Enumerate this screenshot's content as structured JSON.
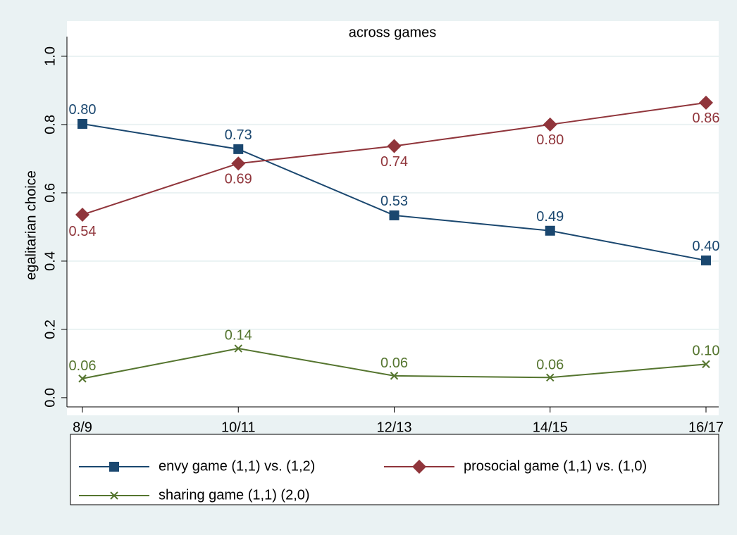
{
  "chart_data": {
    "type": "line",
    "title": "across games",
    "ylabel": "egalitarian choice",
    "categories": [
      "8/9",
      "10/11",
      "12/13",
      "14/15",
      "16/17"
    ],
    "series": [
      {
        "name": "envy game (1,1) vs. (1,2)",
        "color": "#1a476f",
        "marker": "square",
        "values": [
          0.802,
          0.728,
          0.534,
          0.489,
          0.402
        ],
        "value_labels": [
          "0.80",
          "0.73",
          "0.53",
          "0.49",
          "0.40"
        ]
      },
      {
        "name": "prosocial game (1,1) vs. (1,0)",
        "color": "#90353b",
        "marker": "diamond",
        "values": [
          0.536,
          0.686,
          0.737,
          0.8,
          0.864
        ],
        "value_labels": [
          "0.54",
          "0.69",
          "0.74",
          "0.80",
          "0.86"
        ]
      },
      {
        "name": "sharing game (1,1) (2,0)",
        "color": "#55752f",
        "marker": "x",
        "values": [
          0.056,
          0.144,
          0.064,
          0.059,
          0.098
        ],
        "value_labels": [
          "0.06",
          "0.14",
          "0.06",
          "0.06",
          "0.10"
        ]
      }
    ],
    "ylim": [
      -0.027,
      1.037
    ],
    "yticks": [
      {
        "value": 0,
        "label": "0.0"
      },
      {
        "value": 0.2,
        "label": "0.2"
      },
      {
        "value": 0.4,
        "label": "0.4"
      },
      {
        "value": 0.6,
        "label": "0.6"
      },
      {
        "value": 0.8,
        "label": "0.8"
      },
      {
        "value": 1,
        "label": "1.0"
      }
    ],
    "grid": true
  }
}
